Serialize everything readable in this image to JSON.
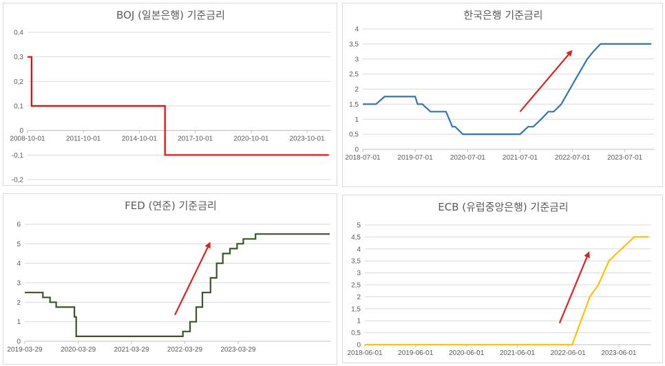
{
  "chart_data": [
    {
      "id": "boj",
      "type": "line",
      "title": "BOJ (일본은행) 기준금리",
      "color": "#ff0000",
      "step": true,
      "ylim": [
        -0.2,
        0.4
      ],
      "yticks": [
        -0.2,
        -0.1,
        0,
        0.1,
        0.2,
        0.3,
        0.4
      ],
      "ytick_labels": [
        "-0,2",
        "-0,1",
        "0",
        "0,1",
        "0,2",
        "0,3",
        "0,4"
      ],
      "xlim": [
        "2008-10-01",
        "2025-01-01"
      ],
      "xticks": [
        "2008-10-01",
        "2011-10-01",
        "2014-10-01",
        "2017-10-01",
        "2020-10-01",
        "2023-10-01"
      ],
      "x_axis_at": 0,
      "arrow": null,
      "series": [
        {
          "x": [
            "2008-10-01",
            "2008-12-19",
            "2016-02-16",
            "2024-12-01"
          ],
          "y": [
            0.3,
            0.1,
            -0.1,
            -0.1
          ]
        }
      ]
    },
    {
      "id": "bok",
      "type": "line",
      "title": "한국은행 기준금리",
      "color": "#2e75b6",
      "step": false,
      "ylim": [
        0,
        4
      ],
      "yticks": [
        0,
        0.5,
        1,
        1.5,
        2,
        2.5,
        3,
        3.5,
        4
      ],
      "ytick_labels": [
        "0",
        "0,5",
        "1",
        "1,5",
        "2",
        "2,5",
        "3",
        "3,5",
        "4"
      ],
      "xlim": [
        "2018-07-01",
        "2024-01-20"
      ],
      "xticks": [
        "2018-07-01",
        "2019-07-01",
        "2020-07-01",
        "2021-07-01",
        "2022-07-01",
        "2023-07-01"
      ],
      "x_axis_at": 0,
      "arrow": {
        "from": [
          "2021-07-01",
          1.25
        ],
        "to": [
          "2022-07-01",
          3.3
        ]
      },
      "series": [
        {
          "x": [
            "2018-07-01",
            "2018-10-01",
            "2018-11-30",
            "2019-07-01",
            "2019-07-18",
            "2019-08-20",
            "2019-10-16",
            "2020-02-01",
            "2020-03-16",
            "2020-04-05",
            "2020-05-28",
            "2021-07-01",
            "2021-08-26",
            "2021-10-01",
            "2021-11-25",
            "2022-01-14",
            "2022-02-20",
            "2022-04-14",
            "2022-07-13",
            "2022-10-12",
            "2022-11-24",
            "2023-01-13",
            "2023-09-01",
            "2024-01-01"
          ],
          "y": [
            1.5,
            1.5,
            1.75,
            1.75,
            1.5,
            1.5,
            1.25,
            1.25,
            0.75,
            0.75,
            0.5,
            0.5,
            0.75,
            0.75,
            1.0,
            1.25,
            1.25,
            1.5,
            2.25,
            3.0,
            3.25,
            3.5,
            3.5,
            3.5
          ]
        }
      ]
    },
    {
      "id": "fed",
      "type": "line",
      "title": "FED (연준) 기준금리",
      "color": "#375623",
      "step": true,
      "ylim": [
        0,
        6
      ],
      "yticks": [
        0,
        1,
        2,
        3,
        4,
        5,
        6
      ],
      "ytick_labels": [
        "0",
        "1",
        "2",
        "3",
        "4",
        "5",
        "6"
      ],
      "xlim": [
        "2019-03-29",
        "2024-12-20"
      ],
      "xticks": [
        "2019-03-29",
        "2020-03-29",
        "2021-03-29",
        "2022-03-29",
        "2023-03-29"
      ],
      "x_axis_at": 0,
      "arrow": {
        "from": [
          "2022-01-20",
          1.35
        ],
        "to": [
          "2022-09-20",
          5.1
        ]
      },
      "series": [
        {
          "x": [
            "2019-03-29",
            "2019-07-31",
            "2019-09-18",
            "2019-10-30",
            "2020-03-03",
            "2020-03-15",
            "2022-03-16",
            "2022-05-04",
            "2022-06-15",
            "2022-07-27",
            "2022-09-21",
            "2022-11-02",
            "2022-12-14",
            "2023-02-01",
            "2023-03-22",
            "2023-05-03",
            "2023-07-26",
            "2024-12-15"
          ],
          "y": [
            2.5,
            2.25,
            2.0,
            1.75,
            1.25,
            0.25,
            0.5,
            1.0,
            1.75,
            2.5,
            3.25,
            4.0,
            4.5,
            4.75,
            5.0,
            5.25,
            5.5,
            5.5
          ]
        }
      ]
    },
    {
      "id": "ecb",
      "type": "line",
      "title": "ECB (유럽중앙은행) 기준금리",
      "color": "#ffc000",
      "step": false,
      "ylim": [
        0,
        5
      ],
      "yticks": [
        0,
        0.5,
        1,
        1.5,
        2,
        2.5,
        3,
        3.5,
        4,
        4.5,
        5
      ],
      "ytick_labels": [
        "0",
        "0,5",
        "1",
        "1,5",
        "2",
        "2,5",
        "3",
        "3,5",
        "4",
        "4,5",
        "5"
      ],
      "xlim": [
        "2018-06-01",
        "2024-01-20"
      ],
      "xticks": [
        "2018-06-01",
        "2019-06-01",
        "2020-06-01",
        "2021-06-01",
        "2022-06-01",
        "2023-06-01"
      ],
      "x_axis_at": 0,
      "arrow": {
        "from": [
          "2022-04-01",
          0.9
        ],
        "to": [
          "2022-11-01",
          3.9
        ]
      },
      "series": [
        {
          "x": [
            "2018-06-01",
            "2022-07-01",
            "2022-11-05",
            "2023-01-05",
            "2023-03-22",
            "2023-09-20",
            "2024-01-01"
          ],
          "y": [
            0,
            0,
            2.0,
            2.5,
            3.5,
            4.5,
            4.5
          ]
        }
      ]
    }
  ]
}
